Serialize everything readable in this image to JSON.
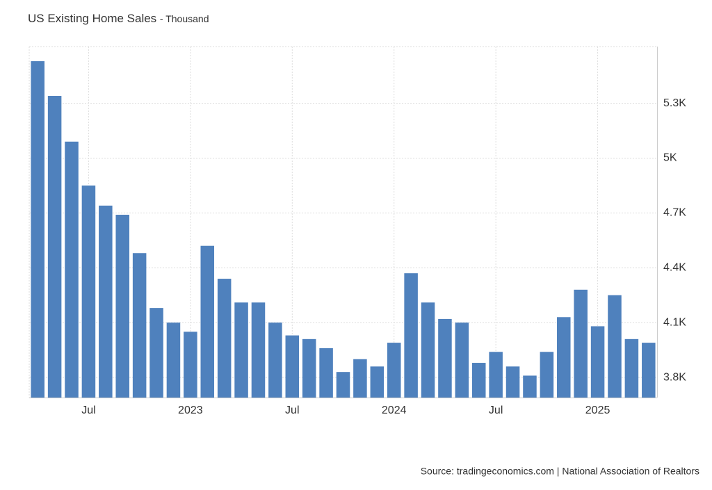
{
  "chart_data": {
    "type": "bar",
    "title": "US Existing Home Sales",
    "subtitle": "- Thousand",
    "source": "Source: tradingeconomics.com | National Association of Realtors",
    "categories": [
      null,
      null,
      null,
      "Jul",
      null,
      null,
      null,
      null,
      null,
      "2023",
      null,
      null,
      null,
      null,
      null,
      "Jul",
      null,
      null,
      null,
      null,
      null,
      "2024",
      null,
      null,
      null,
      null,
      null,
      "Jul",
      null,
      null,
      null,
      null,
      null,
      "2025",
      null,
      null,
      null
    ],
    "values": [
      5530,
      5340,
      5090,
      4850,
      4740,
      4690,
      4480,
      4180,
      4100,
      4050,
      4520,
      4340,
      4210,
      4210,
      4100,
      4030,
      4010,
      3960,
      3830,
      3900,
      3860,
      3990,
      4370,
      4210,
      4120,
      4100,
      3880,
      3940,
      3860,
      3810,
      3940,
      4130,
      4280,
      4080,
      4250,
      4010,
      3990
    ],
    "color": "#4f81bd",
    "ylim": [
      3690,
      5610
    ],
    "yticks": [
      {
        "value": 3800,
        "label": "3.8K"
      },
      {
        "value": 4100,
        "label": "4.1K"
      },
      {
        "value": 4400,
        "label": "4.4K"
      },
      {
        "value": 4700,
        "label": "4.7K"
      },
      {
        "value": 5000,
        "label": "5K"
      },
      {
        "value": 5300,
        "label": "5.3K"
      }
    ],
    "grid": true
  }
}
